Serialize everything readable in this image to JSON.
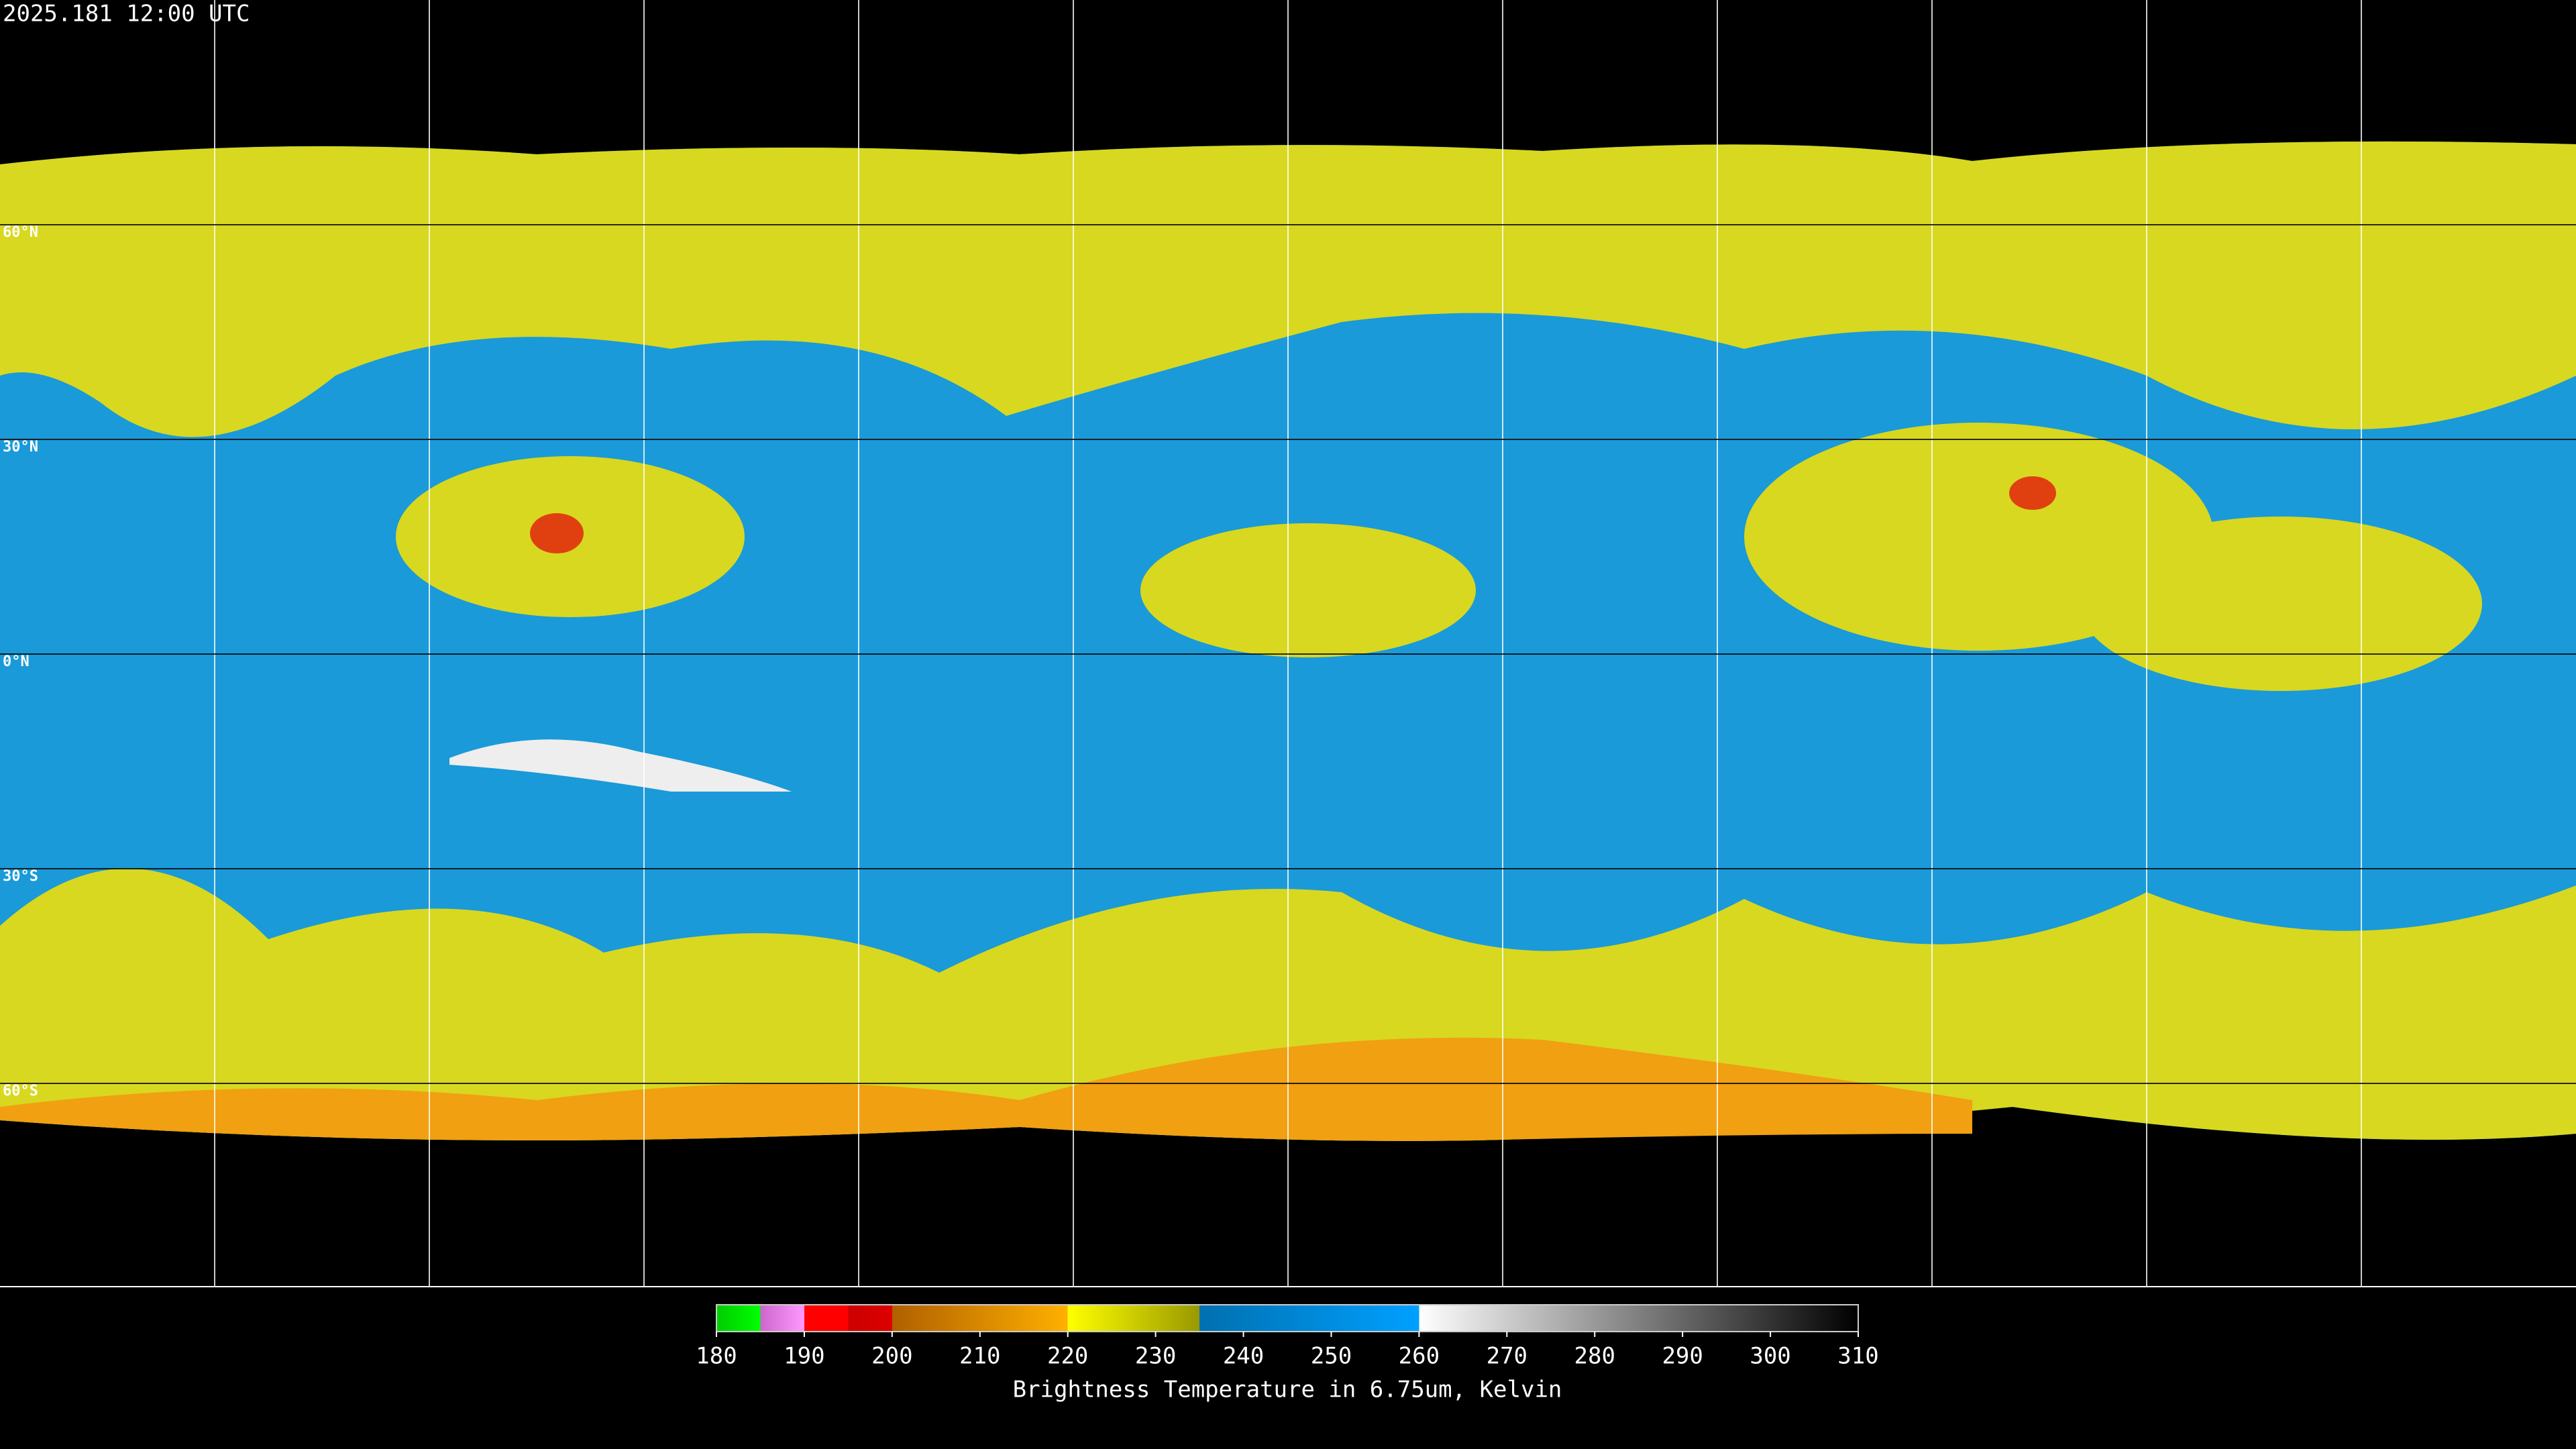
{
  "header": {
    "timestamp": "2025.181 12:00 UTC"
  },
  "map": {
    "parallels": [
      {
        "value": 60,
        "label": "60°N"
      },
      {
        "value": 30,
        "label": "30°N"
      },
      {
        "value": 0,
        "label": "0°N"
      },
      {
        "value": -30,
        "label": "30°S"
      },
      {
        "value": -60,
        "label": "60°S"
      }
    ]
  },
  "colorbar": {
    "range": [
      180,
      310
    ],
    "ticks": [
      180,
      190,
      200,
      210,
      220,
      230,
      240,
      250,
      260,
      270,
      280,
      290,
      300,
      310
    ],
    "stops": [
      [
        180,
        "#00cc00"
      ],
      [
        185,
        "#00ff00"
      ],
      [
        185,
        "#cc66cc"
      ],
      [
        190,
        "#ff99ff"
      ],
      [
        190,
        "#ff0000"
      ],
      [
        195,
        "#ff0000"
      ],
      [
        195,
        "#cc0000"
      ],
      [
        200,
        "#dd0000"
      ],
      [
        200,
        "#b06000"
      ],
      [
        220,
        "#ffb000"
      ],
      [
        220,
        "#ffff00"
      ],
      [
        235,
        "#999900"
      ],
      [
        235,
        "#0070b0"
      ],
      [
        260,
        "#00a0ff"
      ],
      [
        260,
        "#ffffff"
      ],
      [
        310,
        "#000000"
      ]
    ],
    "label": "Brightness Temperature in 6.75um, Kelvin"
  }
}
